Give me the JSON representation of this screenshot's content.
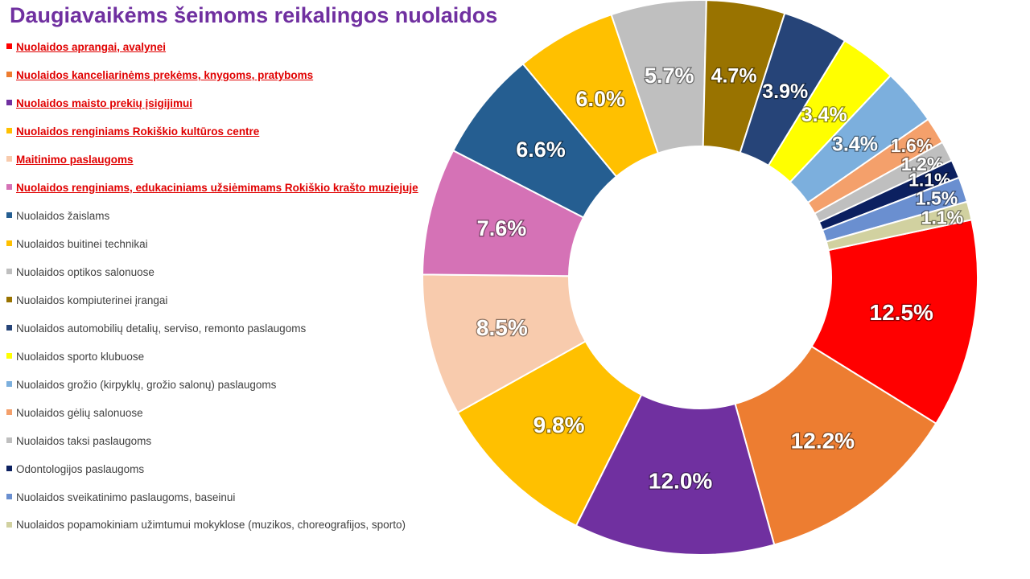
{
  "title": "Daugiavaikėms šeimoms reikalingos nuolaidos",
  "chart_data": {
    "type": "pie",
    "variant": "donut",
    "title": "Daugiavaikėms šeimoms reikalingos nuolaidos",
    "legend_position": "left",
    "unit": "%",
    "slices": [
      {
        "label": "Nuolaidos aprangai, avalynei",
        "value": 12.5,
        "display": "12.5%",
        "color": "#ff0000",
        "link": true
      },
      {
        "label": "Nuolaidos kanceliarinėms prekėms, knygoms, pratyboms",
        "value": 12.2,
        "display": "12.2%",
        "color": "#ed7d31",
        "link": true
      },
      {
        "label": "Nuolaidos maisto prekių įsigijimui",
        "value": 12.0,
        "display": "12.0%",
        "color": "#7030a0",
        "link": true
      },
      {
        "label": "Nuolaidos renginiams Rokiškio kultūros centre",
        "value": 9.8,
        "display": "9.8%",
        "color": "#ffc000",
        "link": true
      },
      {
        "label": "Maitinimo paslaugoms",
        "value": 8.5,
        "display": "8.5%",
        "color": "#f8cbad",
        "link": true
      },
      {
        "label": "Nuolaidos renginiams, edukaciniams užsiėmimams Rokiškio krašto muziejuje",
        "value": 7.6,
        "display": "7.6%",
        "color": "#d572b6",
        "link": true
      },
      {
        "label": "Nuolaidos žaislams",
        "value": 6.6,
        "display": "6.6%",
        "color": "#255e91",
        "link": false
      },
      {
        "label": "Nuolaidos buitinei technikai",
        "value": 6.0,
        "display": "6.0%",
        "color": "#ffc000",
        "link": false
      },
      {
        "label": "Nuolaidos optikos salonuose",
        "value": 5.7,
        "display": "5.7%",
        "color": "#bfbfbf",
        "link": false
      },
      {
        "label": "Nuolaidos kompiuterinei įrangai",
        "value": 4.7,
        "display": "4.7%",
        "color": "#997300",
        "link": false
      },
      {
        "label": "Nuolaidos automobilių detalių, serviso, remonto paslaugoms",
        "value": 3.9,
        "display": "3.9%",
        "color": "#264478",
        "link": false
      },
      {
        "label": "Nuolaidos sporto klubuose",
        "value": 3.4,
        "display": "3.4%",
        "color": "#ffff00",
        "link": false
      },
      {
        "label": "Nuolaidos grožio (kirpyklų, grožio salonų) paslaugoms",
        "value": 3.4,
        "display": "3.4%",
        "color": "#7cafdd",
        "link": false
      },
      {
        "label": "Nuolaidos gėlių salonuose",
        "value": 1.6,
        "display": "1.6%",
        "color": "#f4a06b",
        "link": false
      },
      {
        "label": "Nuolaidos taksi paslaugoms",
        "value": 1.2,
        "display": "1.2%",
        "color": "#bfbfbf",
        "link": false
      },
      {
        "label": "Odontologijos paslaugoms",
        "value": 1.1,
        "display": "1.1%",
        "color": "#0c2060",
        "link": false
      },
      {
        "label": "Nuolaidos sveikatinimo paslaugoms, baseinui",
        "value": 1.5,
        "display": "1.5%",
        "color": "#6a8fd0",
        "link": false
      },
      {
        "label": "Nuolaidos popamokiniam užimtumui mokyklose (muzikos, choreografijos, sporto)",
        "value": 1.1,
        "display": "1.1%",
        "color": "#d1d1a0",
        "link": false
      }
    ]
  }
}
